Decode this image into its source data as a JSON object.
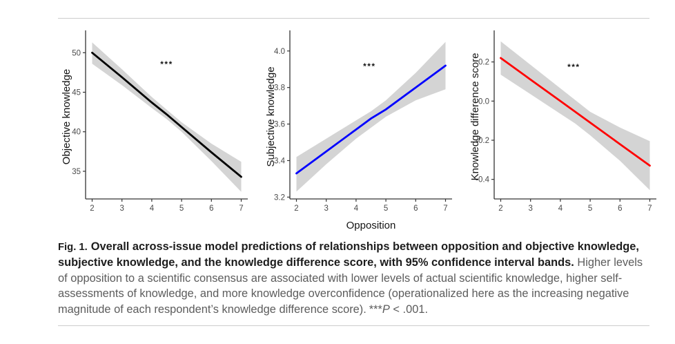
{
  "caption": {
    "fig_label": "Fig. 1.",
    "title": "Overall across-issue model predictions of relationships between opposition and objective knowledge, subjective knowledge, and the knowledge difference score, with 95% confidence interval bands.",
    "body": " Higher levels of opposition to a scientific consensus are associated with lower levels of actual scientific knowledge, higher self-assessments of knowledge, and more knowledge overconfidence (operationalized here as the increasing negative magnitude of each respondent’s knowledge difference score).",
    "sig_stars": "***",
    "sig_p": "P",
    "sig_rest": " < .001."
  },
  "colors": {
    "band": "#d4d4d4",
    "axis": "#333333",
    "tick_label": "#4a4a4a",
    "divider": "#cccccc"
  },
  "chart_data": [
    {
      "type": "line",
      "ylabel": "Objective knowledge",
      "xlabel": "",
      "line_color": "#000000",
      "band_color": "#d4d4d4",
      "x": [
        2,
        3,
        4,
        4.5,
        5,
        6,
        7
      ],
      "y": [
        50.0,
        46.9,
        43.7,
        42.2,
        40.6,
        37.4,
        34.3
      ],
      "band_upper": [
        51.3,
        47.9,
        44.4,
        42.8,
        41.2,
        38.5,
        36.2
      ],
      "band_lower": [
        48.6,
        45.9,
        43.0,
        41.6,
        40.0,
        36.3,
        32.4
      ],
      "xticks": [
        2,
        3,
        4,
        5,
        6,
        7
      ],
      "xtick_labels": [
        "2",
        "3",
        "4",
        "5",
        "6",
        "7"
      ],
      "yticks": [
        35,
        40,
        45,
        50
      ],
      "ytick_labels": [
        "35",
        "40",
        "45",
        "50"
      ],
      "xlim": [
        1.78,
        7.22
      ],
      "ylim": [
        31.5,
        52.3
      ],
      "annotation": {
        "text": "***",
        "x": 4.5,
        "y": 48.2
      }
    },
    {
      "type": "line",
      "ylabel": "Subjective knowledge",
      "xlabel": "Opposition",
      "line_color": "#0000ff",
      "band_color": "#d4d4d4",
      "x": [
        2,
        3,
        4,
        4.5,
        5,
        6,
        7
      ],
      "y": [
        3.33,
        3.45,
        3.57,
        3.63,
        3.68,
        3.8,
        3.92
      ],
      "band_upper": [
        3.42,
        3.52,
        3.62,
        3.67,
        3.73,
        3.88,
        4.05
      ],
      "band_lower": [
        3.23,
        3.38,
        3.52,
        3.58,
        3.64,
        3.73,
        3.79
      ],
      "xticks": [
        2,
        3,
        4,
        5,
        6,
        7
      ],
      "xtick_labels": [
        "2",
        "3",
        "4",
        "5",
        "6",
        "7"
      ],
      "yticks": [
        3.2,
        3.4,
        3.6,
        3.8,
        4.0
      ],
      "ytick_labels": [
        "3.2",
        "3.4",
        "3.6",
        "3.8",
        "4.0"
      ],
      "xlim": [
        1.78,
        7.22
      ],
      "ylim": [
        3.19,
        4.09
      ],
      "annotation": {
        "text": "***",
        "x": 4.45,
        "y": 3.9
      }
    },
    {
      "type": "line",
      "ylabel": "Knowledge difference score",
      "xlabel": "",
      "line_color": "#ff0000",
      "band_color": "#d4d4d4",
      "x": [
        2,
        3,
        4,
        4.5,
        5,
        6,
        7
      ],
      "y": [
        0.22,
        0.11,
        0.0,
        -0.055,
        -0.11,
        -0.22,
        -0.33
      ],
      "band_upper": [
        0.305,
        0.185,
        0.065,
        0.005,
        -0.055,
        -0.135,
        -0.205
      ],
      "band_lower": [
        0.135,
        0.035,
        -0.065,
        -0.115,
        -0.175,
        -0.305,
        -0.455
      ],
      "xticks": [
        2,
        3,
        4,
        5,
        6,
        7
      ],
      "xtick_labels": [
        "2",
        "3",
        "4",
        "5",
        "6",
        "7"
      ],
      "yticks": [
        -0.4,
        -0.2,
        0.0,
        0.2
      ],
      "ytick_labels": [
        "-0.4",
        "-0.2",
        "0.0",
        "0.2"
      ],
      "xlim": [
        1.78,
        7.22
      ],
      "ylim": [
        -0.5,
        0.34
      ],
      "annotation": {
        "text": "***",
        "x": 4.45,
        "y": 0.16
      }
    }
  ]
}
